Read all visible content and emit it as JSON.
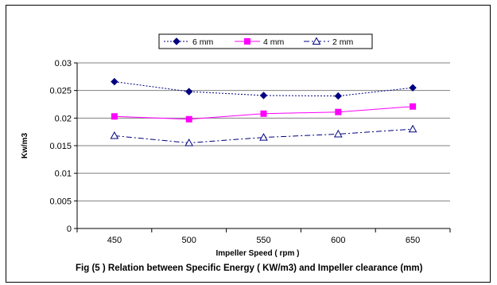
{
  "chart_data": {
    "type": "line",
    "title": "",
    "xlabel": "Impeller Speed ( rpm )",
    "ylabel": "Kw/m3",
    "x": [
      450,
      500,
      550,
      600,
      650
    ],
    "xticks": [
      "450",
      "500",
      "550",
      "600",
      "650"
    ],
    "yticks": [
      "0",
      "0.005",
      "0.01",
      "0.015",
      "0.02",
      "0.025",
      "0.03"
    ],
    "ylim": [
      0,
      0.03
    ],
    "grid": "horizontal",
    "legend_position": "top",
    "series": [
      {
        "name": "6 mm",
        "values": [
          0.0266,
          0.0248,
          0.0241,
          0.024,
          0.0255
        ],
        "color": "#000080",
        "marker": "diamond",
        "dash": "dotted"
      },
      {
        "name": "4 mm",
        "values": [
          0.0203,
          0.0198,
          0.0208,
          0.0211,
          0.0221
        ],
        "color": "#ff00ff",
        "marker": "square",
        "dash": "solid"
      },
      {
        "name": "2 mm",
        "values": [
          0.0168,
          0.0155,
          0.0165,
          0.0171,
          0.018
        ],
        "color": "#000080",
        "marker": "triangle-open",
        "dash": "dash-dot"
      }
    ]
  },
  "caption": "Fig (5 ) Relation between Specific Energy ( KW/m3) and Impeller clearance (mm)"
}
